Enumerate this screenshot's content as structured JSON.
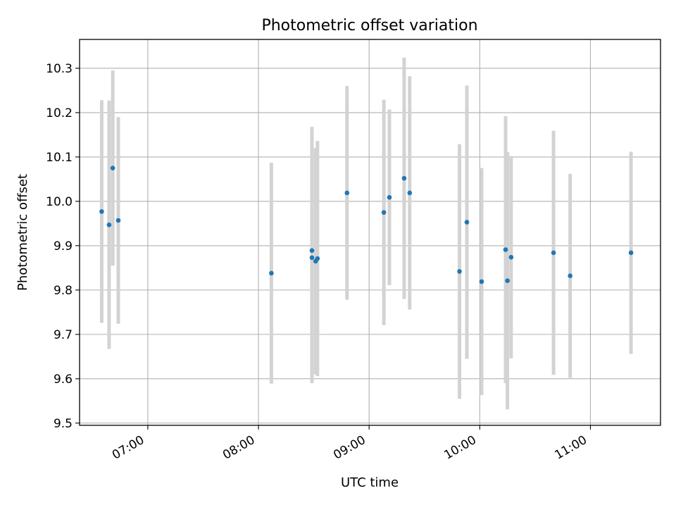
{
  "chart_data": {
    "type": "scatter",
    "title": "Photometric offset variation",
    "xlabel": "UTC time",
    "ylabel": "Photometric offset",
    "x_ticks": [
      "07:00",
      "08:00",
      "09:00",
      "10:00",
      "11:00"
    ],
    "y_ticks": [
      "9.5",
      "9.6",
      "9.7",
      "9.8",
      "9.9",
      "10.0",
      "10.1",
      "10.2",
      "10.3"
    ],
    "xlim": [
      "06:23",
      "11:38"
    ],
    "ylim": [
      9.495,
      10.365
    ],
    "grid": true,
    "marker_color": "#1f77b4",
    "errorbar_color": "#d3d3d3",
    "points": [
      {
        "x": "06:35",
        "y": 9.977,
        "err": 0.251
      },
      {
        "x": "06:39",
        "y": 9.947,
        "err": 0.28
      },
      {
        "x": "06:41",
        "y": 10.075,
        "err": 0.22
      },
      {
        "x": "06:44",
        "y": 9.957,
        "err": 0.233
      },
      {
        "x": "08:07",
        "y": 9.838,
        "err": 0.249
      },
      {
        "x": "08:29",
        "y": 9.873,
        "err": 0.283
      },
      {
        "x": "08:29",
        "y": 9.889,
        "err": 0.279
      },
      {
        "x": "08:31",
        "y": 9.865,
        "err": 0.255
      },
      {
        "x": "08:32",
        "y": 9.871,
        "err": 0.265
      },
      {
        "x": "08:48",
        "y": 10.019,
        "err": 0.241
      },
      {
        "x": "09:08",
        "y": 9.975,
        "err": 0.254
      },
      {
        "x": "09:11",
        "y": 10.009,
        "err": 0.198
      },
      {
        "x": "09:19",
        "y": 10.052,
        "err": 0.272
      },
      {
        "x": "09:22",
        "y": 10.019,
        "err": 0.263
      },
      {
        "x": "09:49",
        "y": 9.842,
        "err": 0.287
      },
      {
        "x": "09:53",
        "y": 9.953,
        "err": 0.308
      },
      {
        "x": "10:01",
        "y": 9.819,
        "err": 0.256
      },
      {
        "x": "10:14",
        "y": 9.891,
        "err": 0.301
      },
      {
        "x": "10:15",
        "y": 9.821,
        "err": 0.29
      },
      {
        "x": "10:17",
        "y": 9.874,
        "err": 0.228
      },
      {
        "x": "10:40",
        "y": 9.884,
        "err": 0.275
      },
      {
        "x": "10:49",
        "y": 9.832,
        "err": 0.23
      },
      {
        "x": "11:22",
        "y": 9.884,
        "err": 0.228
      }
    ]
  }
}
